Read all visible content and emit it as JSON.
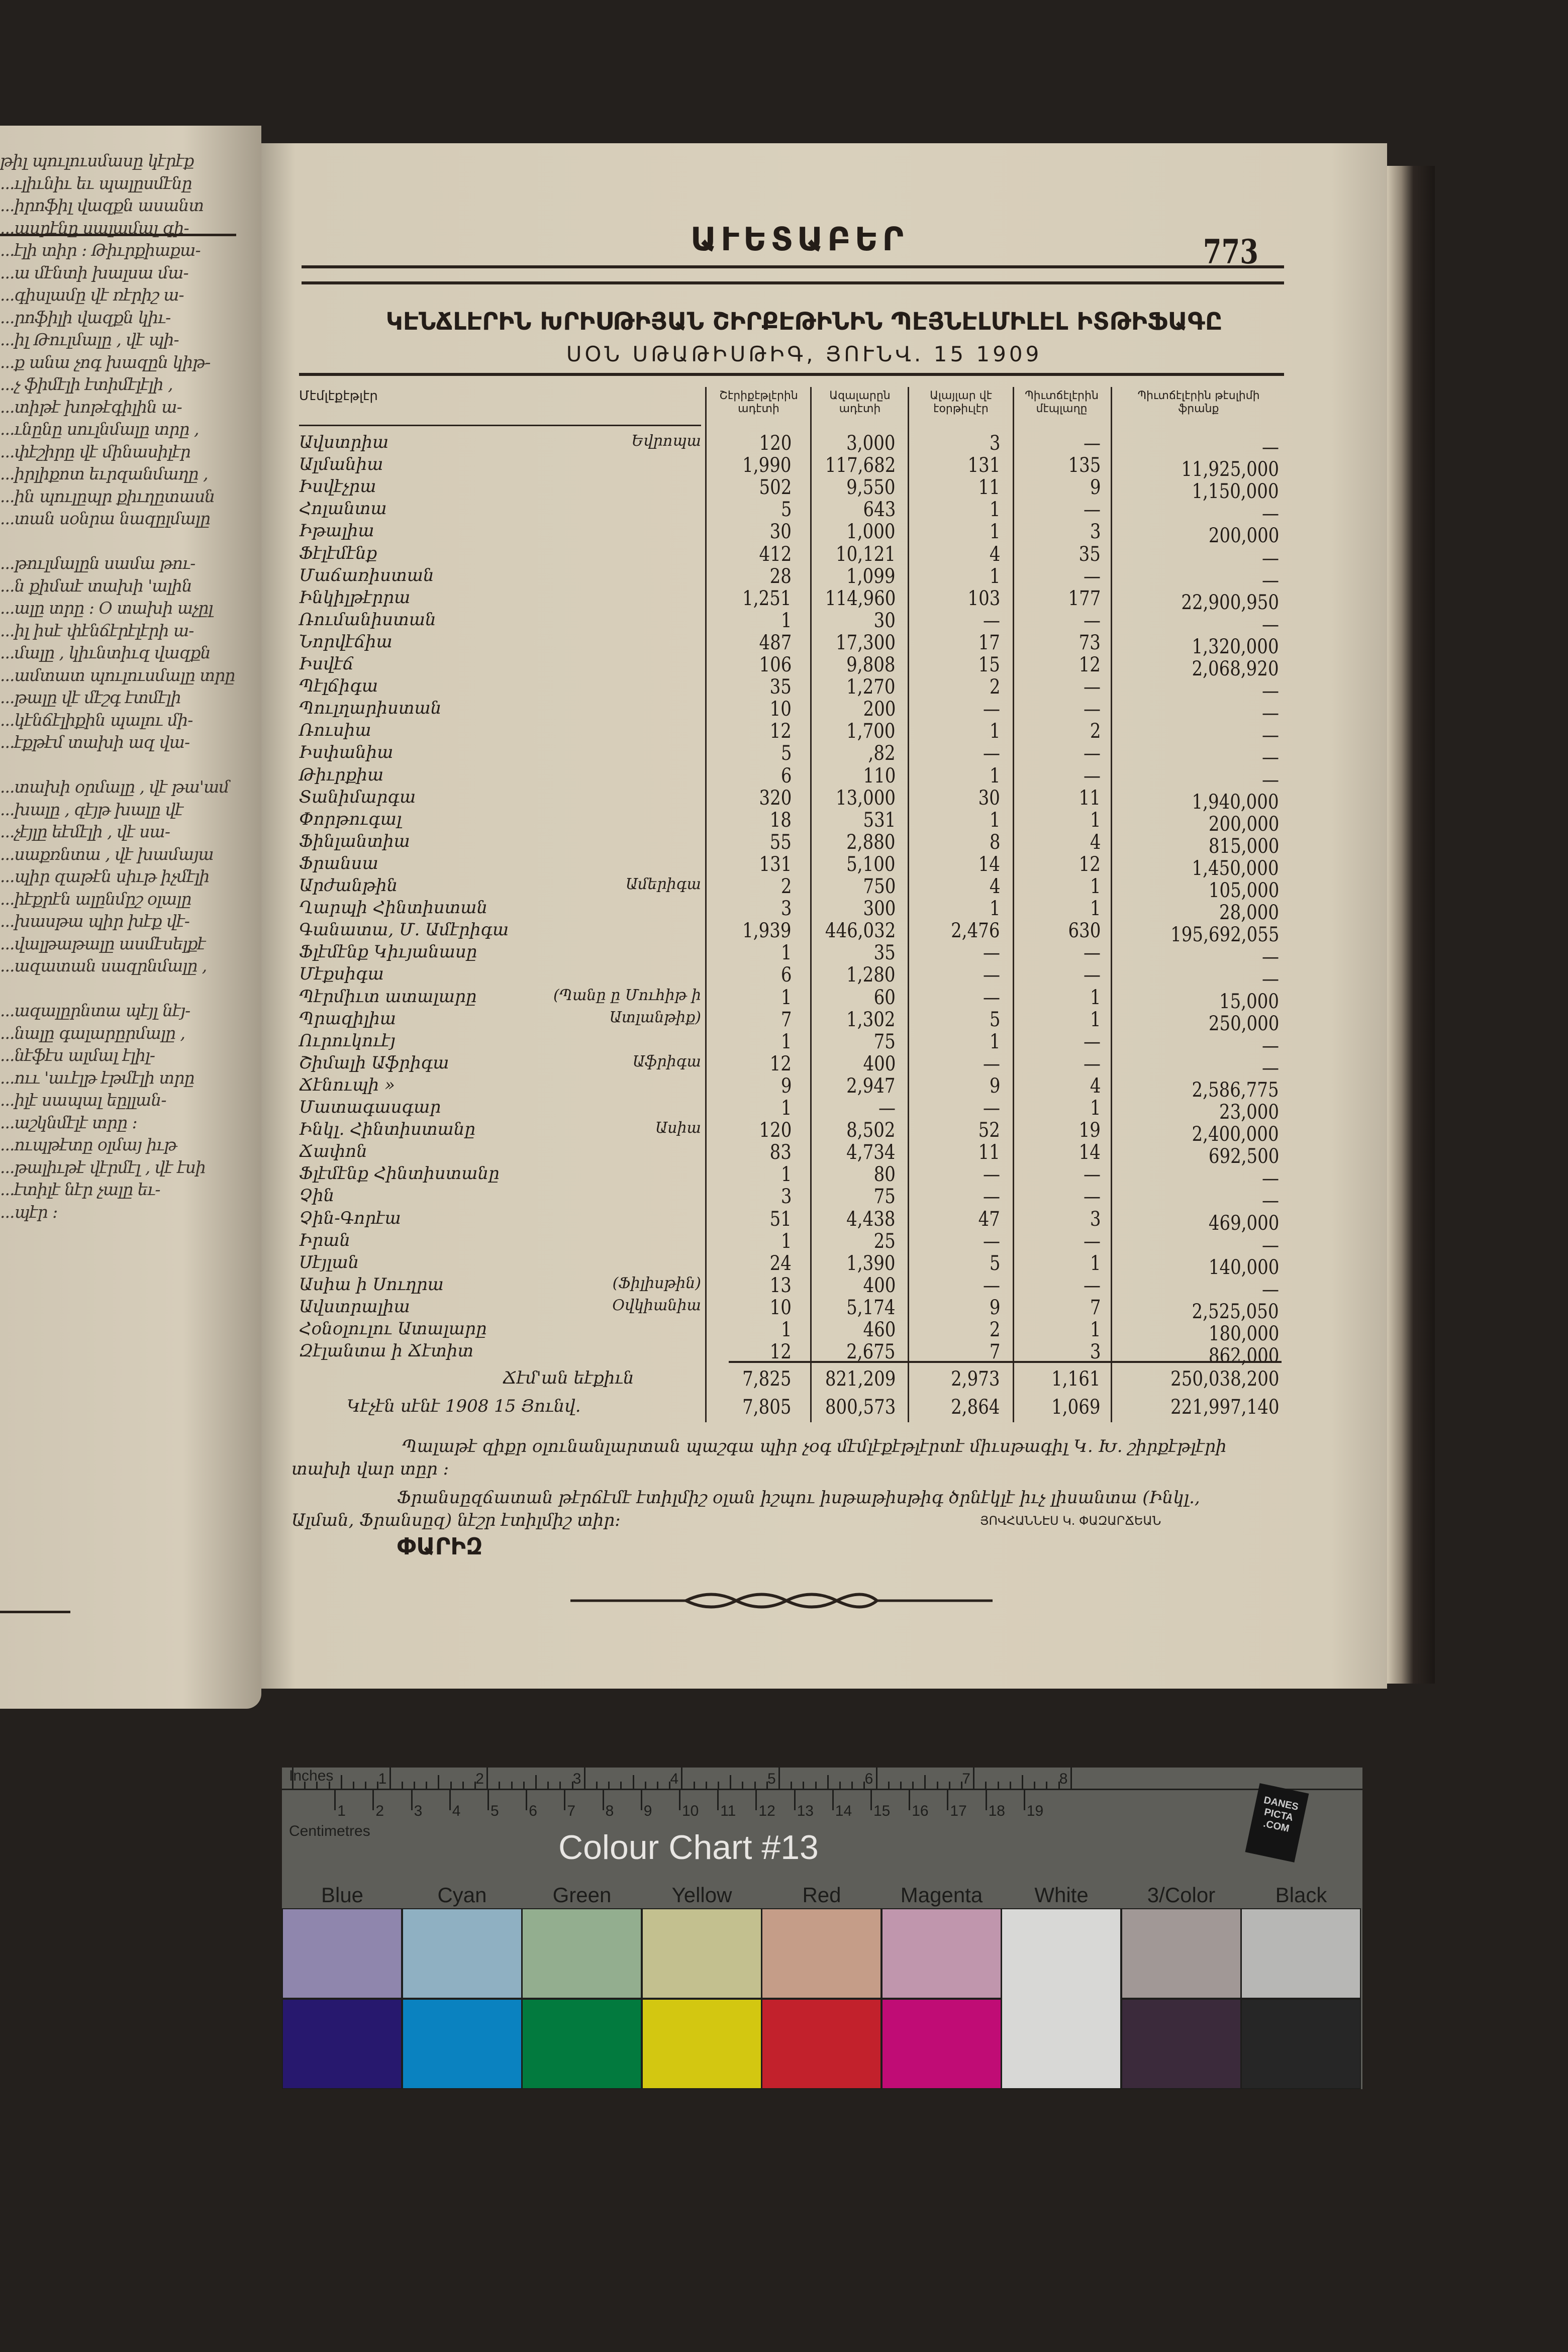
{
  "running_head": "ԱՒԵՏԱԲԵՐ",
  "page_number": "773",
  "title_line1": "ԿԷՆՃԼԷՐԻՆ ԽՐԻՍԹԻՅԱՆ ՇԻՐՔԷԹԻՆԻՆ ՊԷՅՆԷԼՄԻԼԷԼ ԻՏԹԻՖԱԳԸ",
  "title_line2": "ՍՕՆ ՍԹԱԹԻՍԹԻԳ, ՅՈՒՆՎ. 15 1909",
  "table": {
    "headers": [
      "Մէմլէքէթլէր",
      "Շէրիքէթլէրին ադէտի",
      "Ազալարըն ադէտի",
      "Ալայլար վէ էօրթիւլէր",
      "Պիւտճէլէրին մէպլաղը",
      "Պիւտճէլէրին թէսլիմի ֆրանք"
    ],
    "rows": [
      {
        "name": "Ավստրիա",
        "note": "Եվրոպա",
        "v": [
          "120",
          "3,000",
          "3",
          "—",
          "—"
        ]
      },
      {
        "name": "Ալմանիա",
        "v": [
          "1,990",
          "117,682",
          "131",
          "135",
          "11,925,000"
        ]
      },
      {
        "name": "Իսվէչրա",
        "v": [
          "502",
          "9,550",
          "11",
          "9",
          "1,150,000"
        ]
      },
      {
        "name": "Հոլանտա",
        "v": [
          "5",
          "643",
          "1",
          "—",
          "—"
        ]
      },
      {
        "name": "Իթալիա",
        "v": [
          "30",
          "1,000",
          "1",
          "3",
          "200,000"
        ]
      },
      {
        "name": "Ֆէլէմէնք",
        "v": [
          "412",
          "10,121",
          "4",
          "35",
          "—"
        ]
      },
      {
        "name": "Մաճառիստան",
        "v": [
          "28",
          "1,099",
          "1",
          "—",
          "—"
        ]
      },
      {
        "name": "Ինկիլթէրրա",
        "v": [
          "1,251",
          "114,960",
          "103",
          "177",
          "22,900,950"
        ]
      },
      {
        "name": "Ռումանիստան",
        "v": [
          "1",
          "30",
          "—",
          "—",
          "—"
        ]
      },
      {
        "name": "Նորվէճիա",
        "v": [
          "487",
          "17,300",
          "17",
          "73",
          "1,320,000"
        ]
      },
      {
        "name": "Իսվէճ",
        "v": [
          "106",
          "9,808",
          "15",
          "12",
          "2,068,920"
        ]
      },
      {
        "name": "Պէլճիգա",
        "v": [
          "35",
          "1,270",
          "2",
          "—",
          "—"
        ]
      },
      {
        "name": "Պուլղարիստան",
        "v": [
          "10",
          "200",
          "—",
          "—",
          "—"
        ]
      },
      {
        "name": "Ռուսիա",
        "v": [
          "12",
          "1,700",
          "1",
          "2",
          "—"
        ]
      },
      {
        "name": "Իսփանիա",
        "v": [
          "5",
          ",82",
          "—",
          "—",
          "—"
        ]
      },
      {
        "name": "Թիւրքիա",
        "v": [
          "6",
          "110",
          "1",
          "—",
          "—"
        ]
      },
      {
        "name": "Տանիմարգա",
        "v": [
          "320",
          "13,000",
          "30",
          "11",
          "1,940,000"
        ]
      },
      {
        "name": "Փորթուգալ",
        "v": [
          "18",
          "531",
          "1",
          "1",
          "200,000"
        ]
      },
      {
        "name": "Ֆինլանտիա",
        "v": [
          "55",
          "2,880",
          "8",
          "4",
          "815,000"
        ]
      },
      {
        "name": "Ֆրանսա",
        "v": [
          "131",
          "5,100",
          "14",
          "12",
          "1,450,000"
        ]
      },
      {
        "name": "Արժանթին",
        "note": "Ամերիգա",
        "v": [
          "2",
          "750",
          "4",
          "1",
          "105,000"
        ]
      },
      {
        "name": "Ղարպի Հինտիստան",
        "v": [
          "3",
          "300",
          "1",
          "1",
          "28,000"
        ]
      },
      {
        "name": "Գանատա, Մ. Ամէրիգա",
        "v": [
          "1,939",
          "446,032",
          "2,476",
          "630",
          "195,692,055"
        ]
      },
      {
        "name": "Ֆլէմէնք Կիւյանասը",
        "v": [
          "1",
          "35",
          "—",
          "—",
          "—"
        ]
      },
      {
        "name": "Մէքսիգա",
        "v": [
          "6",
          "1,280",
          "—",
          "—",
          "—"
        ]
      },
      {
        "name": "Պէրմիւտ ատալարը",
        "note": "(Պանը ը Մուհիթ ի",
        "v": [
          "1",
          "60",
          "—",
          "1",
          "15,000"
        ]
      },
      {
        "name": "Պրազիլիա",
        "note": "Ատլանթիք)",
        "v": [
          "7",
          "1,302",
          "5",
          "1",
          "250,000"
        ]
      },
      {
        "name": "Ուրուկուէյ",
        "v": [
          "1",
          "75",
          "1",
          "—",
          "—"
        ]
      },
      {
        "name": "Շիմալի Աֆրիգա",
        "note": "Աֆրիգա",
        "v": [
          "12",
          "400",
          "—",
          "—",
          "—"
        ]
      },
      {
        "name": "Ճէնուպի »",
        "v": [
          "9",
          "2,947",
          "9",
          "4",
          "2,586,775"
        ]
      },
      {
        "name": "Մատագասգար",
        "v": [
          "1",
          "—",
          "—",
          "1",
          "23,000"
        ]
      },
      {
        "name": "Ինկլ. Հինտիստանը",
        "note": "Ասիա",
        "v": [
          "120",
          "8,502",
          "52",
          "19",
          "2,400,000"
        ]
      },
      {
        "name": "Ճափոն",
        "v": [
          "83",
          "4,734",
          "11",
          "14",
          "692,500"
        ]
      },
      {
        "name": "Ֆլէմէնք Հինտիստանը",
        "v": [
          "1",
          "80",
          "—",
          "—",
          "—"
        ]
      },
      {
        "name": "Չին",
        "v": [
          "3",
          "75",
          "—",
          "—",
          "—"
        ]
      },
      {
        "name": "Չին-Գորէա",
        "v": [
          "51",
          "4,438",
          "47",
          "3",
          "469,000"
        ]
      },
      {
        "name": "Իրան",
        "v": [
          "1",
          "25",
          "—",
          "—",
          "—"
        ]
      },
      {
        "name": "Սէյլան",
        "v": [
          "24",
          "1,390",
          "5",
          "1",
          "140,000"
        ]
      },
      {
        "name": "Ասիա ի Սուղրա",
        "note": "(Ֆիլիսթին)",
        "v": [
          "13",
          "400",
          "—",
          "—",
          "—"
        ]
      },
      {
        "name": "Ավստրալիա",
        "note": "Օվկիանիա",
        "v": [
          "10",
          "5,174",
          "9",
          "7",
          "2,525,050"
        ]
      },
      {
        "name": "Հօնօլուլու Ատալարը",
        "v": [
          "1",
          "460",
          "2",
          "1",
          "180,000"
        ]
      },
      {
        "name": "Զէլանտա ի Ճէտիտ",
        "v": [
          "12",
          "2,675",
          "7",
          "3",
          "862,000"
        ]
      }
    ],
    "total": {
      "label": "Ճէմ'ան եէքիւն",
      "v": [
        "7,825",
        "821,209",
        "2,973",
        "1,161",
        "250,038,200"
      ]
    },
    "previous": {
      "label": "Կէչէն սէնէ 1908 15 Յունվ.",
      "v": [
        "7,805",
        "800,573",
        "2,864",
        "1,069",
        "221,997,140"
      ]
    }
  },
  "footer": {
    "para1_line1": "Պալաթէ զիքր օլունանլարտան պաշգա պիր չօգ մէմլէքէթլէրտէ միւսթագիլ Կ. Խ. շիրքէթլէրի",
    "para1_line2": "տախի վար տըր ։",
    "para2_line1": "Ֆրանսըզճատան թէրճէմէ էտիլմիշ օլան իշպու իսթաթիսթիգ ծրնէկլէ իւչ լիսանտա (Ինկլ.,",
    "para2_line2": "Ալման, Ֆրանսըզ) նէշր էտիլմիշ տիր։",
    "signature": "ՅՈՎՀԱՆՆԷՍ Կ. ՓԱԶԱՐՃԵԱՆ",
    "place": "ՓԱՐԻԶ"
  },
  "left_page_lines": [
    "թիլ պուլուսմասը կէրէք",
    "...ւլիւնիւ եւ պալըսմէնը",
    "...իրոֆիլ վազքն ասանտ",
    "...ասրէնը սալամալ գի-",
    "...էլի տիր ։ Թիւրքիաքա-",
    "...ա մէնտի խալսա մա-",
    "...գիսլամը վէ ռէրիշ ա-",
    "...րոֆիլի վազքն կիւ-",
    "...իլ Թուլմալը , վէ պի-",
    "...ք անա չոգ խազըն կիթ-",
    "...չ ֆիմէլի էտիմէլէլի ,",
    "...տիթէ խոթէգիլին ա-",
    "...ւնընը սուլնմալը տրը ,",
    "...փէշիրը վէ մինասիլէր",
    "...իրլիքոտ եւրզանմաղը ,",
    "...ին պուլըպր քիւղըտասն",
    "...տան սօնրա նազըլմալը",
    "",
    "...թուլմալըն սամա թու-",
    "...ն քիմաէ տախի 'ալին",
    "...ալը տրը ։ Օ տախի աչըլ",
    "...իլ իսէ փէնճէրէլէրի ա-",
    "...մալը , կիւնտիւզ վազքն",
    "...ամտատ պուլուսմալը տրը",
    "...թալը վէ մէշգ էտմէլի",
    "...կէնճէլիքին պալու մի-",
    "...էքթէմ տախի ազ վա-",
    "",
    "...տախի օրմալը , վէ թա'ամ",
    "...խալը , զէյթ խալը վէ",
    "...չէյլը եէմէլի , վէ սա-",
    "...սաքռնտա , վէ խամայա",
    "...պիր զաթէն սիւթ իչմէլի",
    "...իէքրէն ալընմըշ օլալը",
    "...խասթա պիր խէք վէ-",
    "...վալթաթալը ասմէսելքէ",
    "...ազատան սազրնմալը ,",
    "",
    "...ազալըրնտա պէյլ նէյ-",
    "...նալը գալարըրմալը ,",
    "...նէֆէս ալմալ էլիլ-",
    "...ոււ 'աւէլթ էթմէլի տրը",
    "...իլէ սապալ եըլլան-",
    "...աշկնմէլէ տրը ։",
    "...ուպթէտը օլմայ իւթ",
    "...թալիւթէ վէրմէլ , վէ էսի",
    "...էտիլէ նէր չալը եւ-",
    "...պէր ։"
  ],
  "colour_chart": {
    "title": "Colour Chart #13",
    "inches_label": "Inches",
    "centimetres_label": "Centimetres",
    "inch_marks": [
      "1",
      "2",
      "3",
      "4",
      "5",
      "6",
      "7",
      "8"
    ],
    "cm_marks": [
      "1",
      "2",
      "3",
      "4",
      "5",
      "6",
      "7",
      "8",
      "9",
      "10",
      "11",
      "12",
      "13",
      "14",
      "15",
      "16",
      "17",
      "18",
      "19"
    ],
    "logo": "DANES PICTA .COM",
    "patches": [
      {
        "label": "Blue",
        "light": "#8f86ad",
        "dark": "#27186e"
      },
      {
        "label": "Cyan",
        "light": "#8fb0c2",
        "dark": "#0a82c0"
      },
      {
        "label": "Green",
        "light": "#93ae8f",
        "dark": "#027a3e"
      },
      {
        "label": "Yellow",
        "light": "#c3c08f",
        "dark": "#d3c711"
      },
      {
        "label": "Red",
        "light": "#c59d88",
        "dark": "#c2212c"
      },
      {
        "label": "Magenta",
        "light": "#c096ad",
        "dark": "#c00c75"
      },
      {
        "label": "White",
        "light": "#d8d8d6",
        "dark": "#d8d8d6"
      },
      {
        "label": "3/Color",
        "light": "#a19896",
        "dark": "#3b2a3b"
      },
      {
        "label": "Black",
        "light": "#b7b7b5",
        "dark": "#262626"
      }
    ]
  }
}
